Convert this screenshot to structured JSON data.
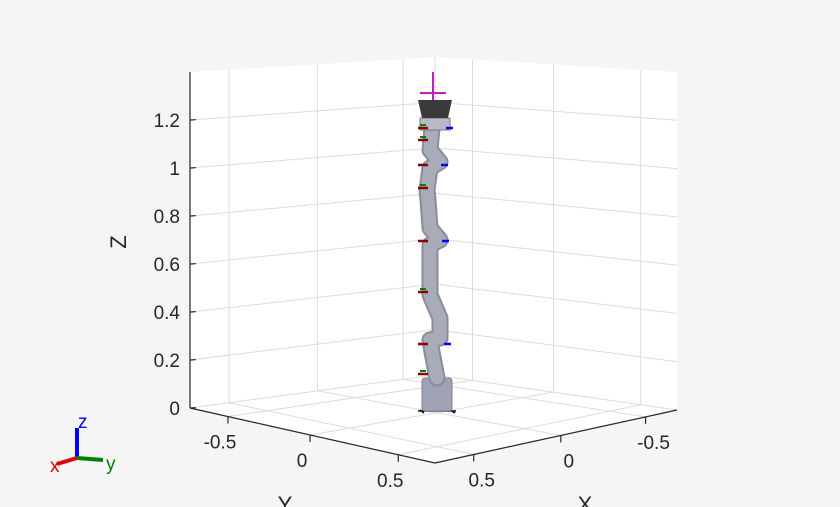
{
  "chart_data": {
    "type": "3d-scene",
    "title": "",
    "xlabel": "X",
    "ylabel": "Y",
    "zlabel": "Z",
    "x_ticks": [
      "0.5",
      "0",
      "-0.5"
    ],
    "y_ticks": [
      "-0.5",
      "0",
      "0.5"
    ],
    "z_ticks": [
      "0",
      "0.2",
      "0.4",
      "0.6",
      "0.8",
      "1",
      "1.2"
    ],
    "z_values": [
      0,
      0.2,
      0.4,
      0.6,
      0.8,
      1,
      1.2
    ],
    "zlim": [
      0,
      1.4
    ],
    "grid": true,
    "content": "robot arm in upright configuration",
    "triad": {
      "x": "x",
      "y": "y",
      "z": "z"
    },
    "colors": {
      "background": "#f5f5f5",
      "axes": "#ffffff",
      "grid": "#dcdcdc",
      "robot": "#a8abb8",
      "x_axis": "#e00000",
      "y_axis": "#008000",
      "z_axis": "#0000ff"
    }
  }
}
